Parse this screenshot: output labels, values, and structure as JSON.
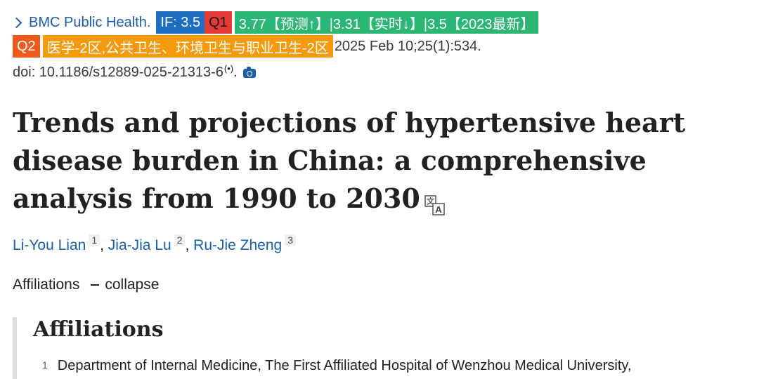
{
  "citation": {
    "journal": "BMC Public Health.",
    "badges": {
      "impact_factor": "IF: 3.5",
      "jcr_quartile": "Q1",
      "if_trend": "3.77【预测↑】|3.31【实时↓】|3.5【2023最新】",
      "cas_quartile": "Q2",
      "cas_category": "医学-2区,公共卫生、环境卫生与职业卫生-2区"
    },
    "pub_info": "2025 Feb 10;25(1):534.",
    "doi": "doi: 10.1186/s12889-025-21313-6",
    "doi_suffix": "."
  },
  "article": {
    "title": "Trends and projections of hypertensive heart disease burden in China: a comprehensive analysis from 1990 to 2030"
  },
  "authors": [
    {
      "name": "Li-You Lian",
      "sup": "1"
    },
    {
      "name": "Jia-Jia Lu",
      "sup": "2"
    },
    {
      "name": "Ru-Jie Zheng",
      "sup": "3"
    }
  ],
  "affiliations_toggle": {
    "label": "Affiliations",
    "action": "collapse"
  },
  "affiliations": {
    "heading": "Affiliations",
    "items": [
      {
        "num": "1",
        "text": "Department of Internal Medicine, The First Affiliated Hospital of Wenzhou Medical University,"
      }
    ]
  },
  "icons": {
    "journal_chevron": "chevron-right-icon",
    "audio": "audio-wave-icon",
    "camera": "camera-icon",
    "translate": "translate-icon"
  },
  "colors": {
    "link": "#1a5fae",
    "if_badge": "#1d6fc4",
    "q1_badge": "#e53935",
    "trend_badge": "#2bb673",
    "q2_badge": "#f05a1a",
    "cas_badge": "#f59a0c"
  }
}
